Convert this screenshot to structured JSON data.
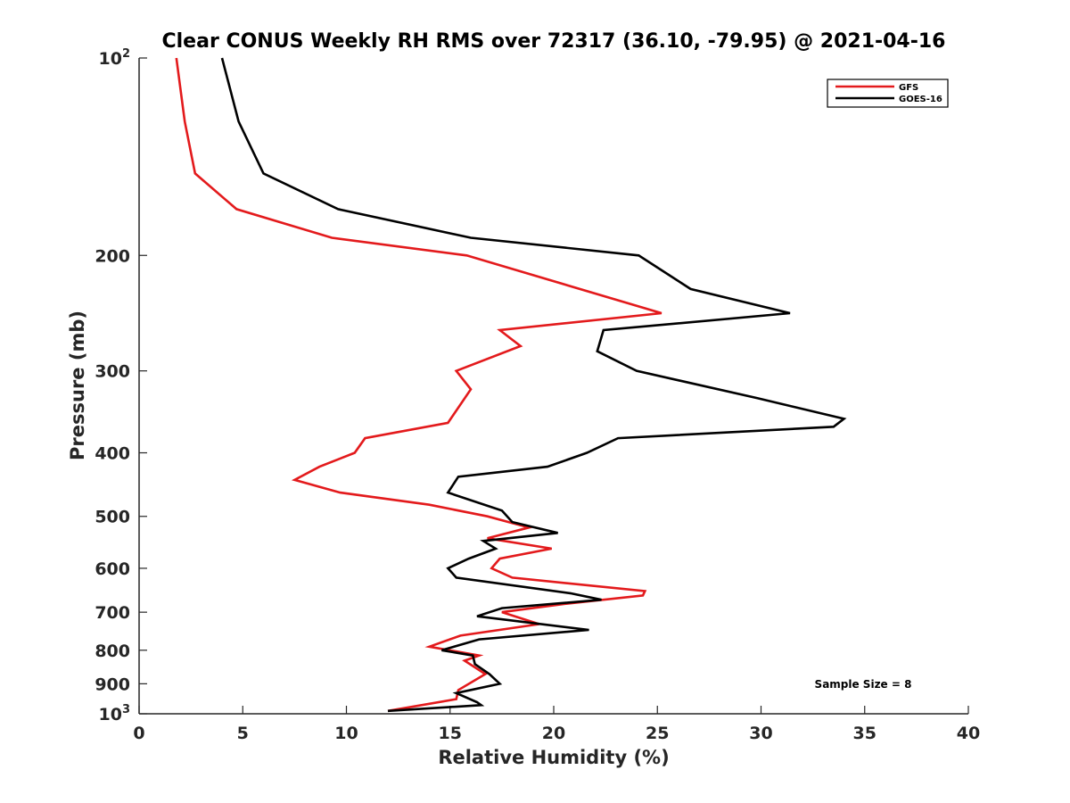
{
  "chart_data": {
    "type": "line",
    "title": "Clear CONUS Weekly RH RMS over 72317 (36.10, -79.95) @ 2021-04-16",
    "xlabel": "Relative Humidity (%)",
    "ylabel": "Pressure (mb)",
    "xlim": [
      0,
      40
    ],
    "ylim": [
      100,
      1000
    ],
    "y_scale": "log",
    "y_reversed": true,
    "x_ticks": [
      0,
      5,
      10,
      15,
      20,
      25,
      30,
      35,
      40
    ],
    "y_ticks": [
      {
        "value": 100,
        "label": "10",
        "sup": "2"
      },
      {
        "value": 200,
        "label": "200",
        "sup": ""
      },
      {
        "value": 300,
        "label": "300",
        "sup": ""
      },
      {
        "value": 400,
        "label": "400",
        "sup": ""
      },
      {
        "value": 500,
        "label": "500",
        "sup": ""
      },
      {
        "value": 600,
        "label": "600",
        "sup": ""
      },
      {
        "value": 700,
        "label": "700",
        "sup": ""
      },
      {
        "value": 800,
        "label": "800",
        "sup": ""
      },
      {
        "value": 900,
        "label": "900",
        "sup": ""
      },
      {
        "value": 1000,
        "label": "10",
        "sup": "3"
      }
    ],
    "legend_position": "top-right",
    "grid": false,
    "series": [
      {
        "name": "GFS",
        "color": "#e31a1c",
        "points": [
          [
            1.8,
            100
          ],
          [
            2.2,
            125
          ],
          [
            2.7,
            150
          ],
          [
            4.7,
            170
          ],
          [
            9.3,
            188
          ],
          [
            15.8,
            200
          ],
          [
            25.2,
            245
          ],
          [
            17.4,
            260
          ],
          [
            18.4,
            275
          ],
          [
            15.3,
            300
          ],
          [
            16.0,
            320
          ],
          [
            14.9,
            360
          ],
          [
            10.9,
            380
          ],
          [
            10.4,
            400
          ],
          [
            8.7,
            420
          ],
          [
            7.5,
            440
          ],
          [
            9.7,
            460
          ],
          [
            14.0,
            480
          ],
          [
            16.8,
            500
          ],
          [
            18.8,
            520
          ],
          [
            16.8,
            540
          ],
          [
            19.9,
            560
          ],
          [
            17.4,
            580
          ],
          [
            17.0,
            600
          ],
          [
            18.0,
            620
          ],
          [
            24.4,
            650
          ],
          [
            24.3,
            660
          ],
          [
            20.5,
            680
          ],
          [
            17.5,
            700
          ],
          [
            19.3,
            730
          ],
          [
            15.5,
            760
          ],
          [
            14.0,
            790
          ],
          [
            16.4,
            815
          ],
          [
            15.7,
            830
          ],
          [
            16.7,
            870
          ],
          [
            15.4,
            920
          ],
          [
            15.3,
            950
          ],
          [
            12.0,
            990
          ]
        ]
      },
      {
        "name": "GOES-16",
        "color": "#000000",
        "points": [
          [
            4.0,
            100
          ],
          [
            4.8,
            125
          ],
          [
            6.0,
            150
          ],
          [
            9.6,
            170
          ],
          [
            16.0,
            188
          ],
          [
            24.1,
            200
          ],
          [
            26.6,
            225
          ],
          [
            31.4,
            245
          ],
          [
            22.4,
            260
          ],
          [
            22.1,
            280
          ],
          [
            24.0,
            300
          ],
          [
            29.8,
            330
          ],
          [
            34.0,
            355
          ],
          [
            33.5,
            365
          ],
          [
            23.1,
            380
          ],
          [
            21.6,
            400
          ],
          [
            19.7,
            420
          ],
          [
            15.4,
            435
          ],
          [
            14.9,
            460
          ],
          [
            17.5,
            490
          ],
          [
            18.0,
            510
          ],
          [
            20.2,
            530
          ],
          [
            16.6,
            545
          ],
          [
            17.2,
            560
          ],
          [
            15.9,
            580
          ],
          [
            14.9,
            600
          ],
          [
            15.3,
            620
          ],
          [
            20.8,
            655
          ],
          [
            22.3,
            670
          ],
          [
            17.5,
            690
          ],
          [
            16.3,
            710
          ],
          [
            21.7,
            745
          ],
          [
            16.4,
            770
          ],
          [
            14.6,
            800
          ],
          [
            16.1,
            815
          ],
          [
            16.2,
            840
          ],
          [
            16.9,
            870
          ],
          [
            17.4,
            900
          ],
          [
            15.3,
            930
          ],
          [
            16.3,
            960
          ],
          [
            16.5,
            970
          ],
          [
            12.0,
            990
          ]
        ]
      }
    ],
    "annotation": "Sample Size = 8"
  }
}
